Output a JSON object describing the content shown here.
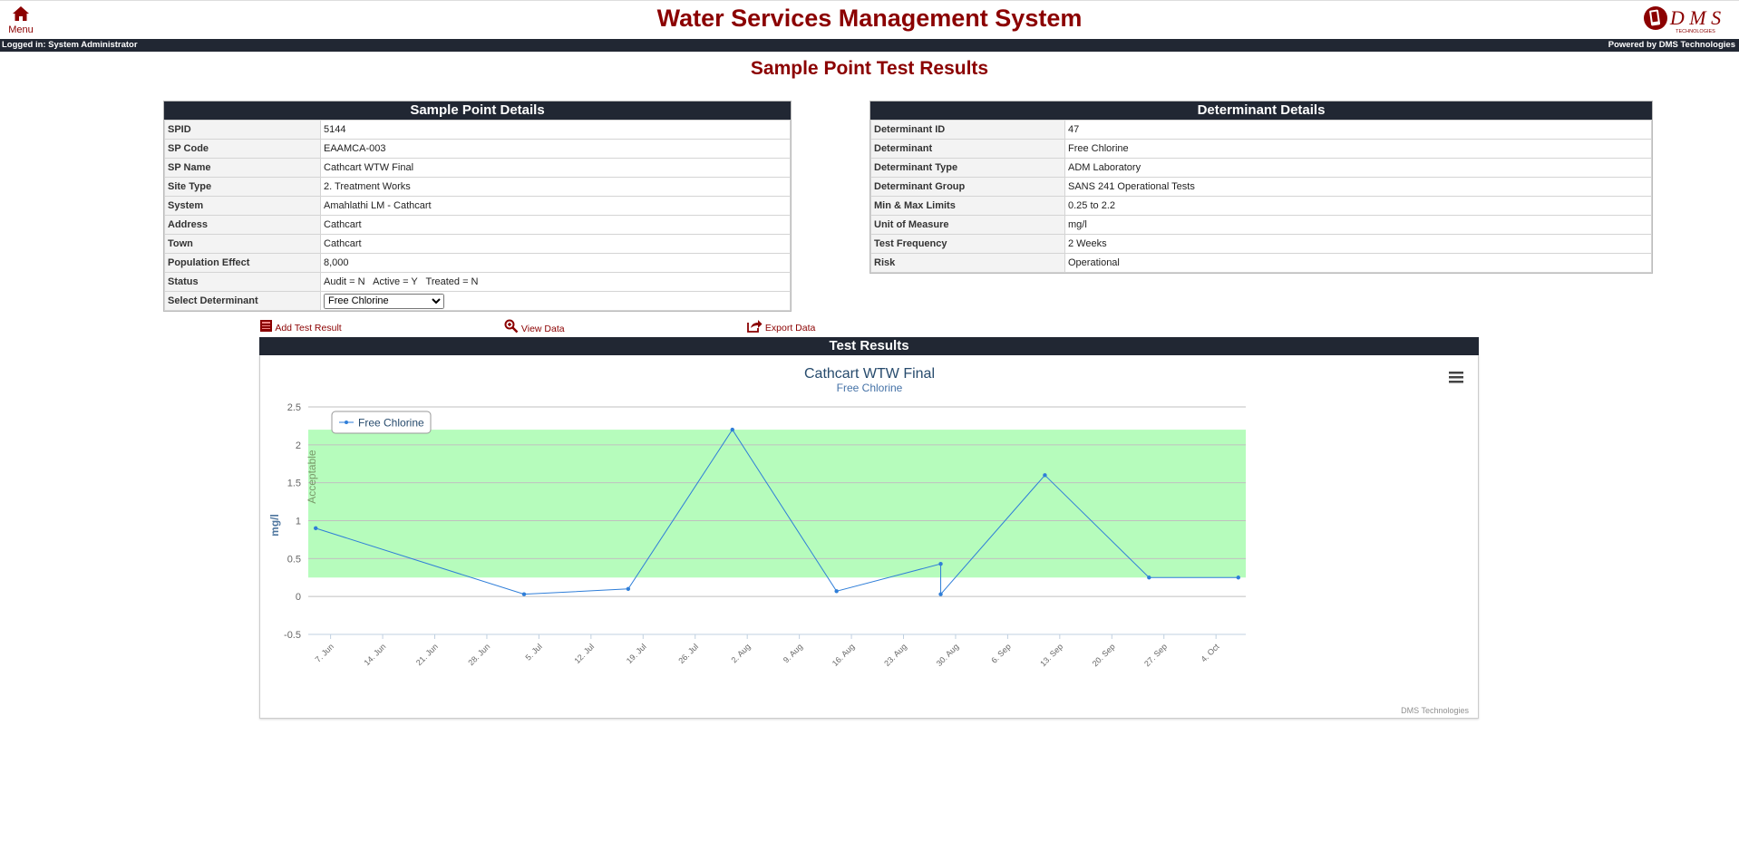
{
  "header": {
    "menu_label": "Menu",
    "app_title": "Water Services Management System",
    "logo_text": "D M S",
    "logo_sub": "TECHNOLOGIES",
    "logged_in": "Logged in: System Administrator",
    "powered_by": "Powered by DMS Technologies"
  },
  "page_title": "Sample Point Test Results",
  "sample_point": {
    "title": "Sample Point Details",
    "rows": [
      {
        "label": "SPID",
        "value": "5144"
      },
      {
        "label": "SP Code",
        "value": "EAAMCA-003"
      },
      {
        "label": "SP Name",
        "value": "Cathcart WTW Final"
      },
      {
        "label": "Site Type",
        "value": "2. Treatment Works"
      },
      {
        "label": "System",
        "value": "Amahlathi LM - Cathcart"
      },
      {
        "label": "Address",
        "value": "Cathcart"
      },
      {
        "label": "Town",
        "value": "Cathcart"
      },
      {
        "label": "Population Effect",
        "value": "8,000"
      },
      {
        "label": "Status",
        "value": "Audit = N   Active = Y   Treated = N"
      }
    ],
    "select_label": "Select Determinant",
    "select_value": "Free Chlorine"
  },
  "determinant": {
    "title": "Determinant Details",
    "rows": [
      {
        "label": "Determinant ID",
        "value": "47"
      },
      {
        "label": "Determinant",
        "value": "Free Chlorine"
      },
      {
        "label": "Determinant Type",
        "value": "ADM Laboratory"
      },
      {
        "label": "Determinant Group",
        "value": "SANS 241 Operational Tests"
      },
      {
        "label": "Min & Max Limits",
        "value": "0.25 to 2.2"
      },
      {
        "label": "Unit of Measure",
        "value": "mg/l"
      },
      {
        "label": "Test Frequency",
        "value": "2 Weeks"
      },
      {
        "label": "Risk",
        "value": "Operational"
      }
    ]
  },
  "actions": {
    "add": "Add Test Result",
    "view": "View Data",
    "export": "Export Data"
  },
  "results_title": "Test Results",
  "colors": {
    "brand": "#8b0000",
    "bar": "#212733",
    "line": "#2f7ed8",
    "band": "#b6fcbc"
  },
  "chart_data": {
    "type": "line",
    "title": "Cathcart WTW Final",
    "subtitle": "Free Chlorine",
    "ylabel": "mg/l",
    "band_label": "Acceptable",
    "band": [
      0.25,
      2.2
    ],
    "credits": "DMS Technologies",
    "legend": "top-left",
    "ylim": [
      -0.5,
      2.5
    ],
    "yticks": [
      -0.5,
      0,
      0.5,
      1,
      1.5,
      2,
      2.5
    ],
    "xlim": [
      "2024-06-04",
      "2024-10-08"
    ],
    "xticks": [
      "7. Jun",
      "14. Jun",
      "21. Jun",
      "28. Jun",
      "5. Jul",
      "12. Jul",
      "19. Jul",
      "26. Jul",
      "2. Aug",
      "9. Aug",
      "16. Aug",
      "23. Aug",
      "30. Aug",
      "6. Sep",
      "13. Sep",
      "20. Sep",
      "27. Sep",
      "4. Oct"
    ],
    "xtick_dates": [
      "2024-06-07",
      "2024-06-14",
      "2024-06-21",
      "2024-06-28",
      "2024-07-05",
      "2024-07-12",
      "2024-07-19",
      "2024-07-26",
      "2024-08-02",
      "2024-08-09",
      "2024-08-16",
      "2024-08-23",
      "2024-08-30",
      "2024-09-06",
      "2024-09-13",
      "2024-09-20",
      "2024-09-27",
      "2024-10-04"
    ],
    "series": [
      {
        "name": "Free Chlorine",
        "points": [
          {
            "x": "2024-06-05",
            "y": 0.9
          },
          {
            "x": "2024-07-03",
            "y": 0.03
          },
          {
            "x": "2024-07-17",
            "y": 0.1
          },
          {
            "x": "2024-07-31",
            "y": 2.2
          },
          {
            "x": "2024-08-14",
            "y": 0.07
          },
          {
            "x": "2024-08-28",
            "y": 0.43
          },
          {
            "x": "2024-08-28",
            "y": 0.03
          },
          {
            "x": "2024-09-11",
            "y": 1.6
          },
          {
            "x": "2024-09-25",
            "y": 0.25
          },
          {
            "x": "2024-10-07",
            "y": 0.25
          }
        ]
      }
    ]
  }
}
